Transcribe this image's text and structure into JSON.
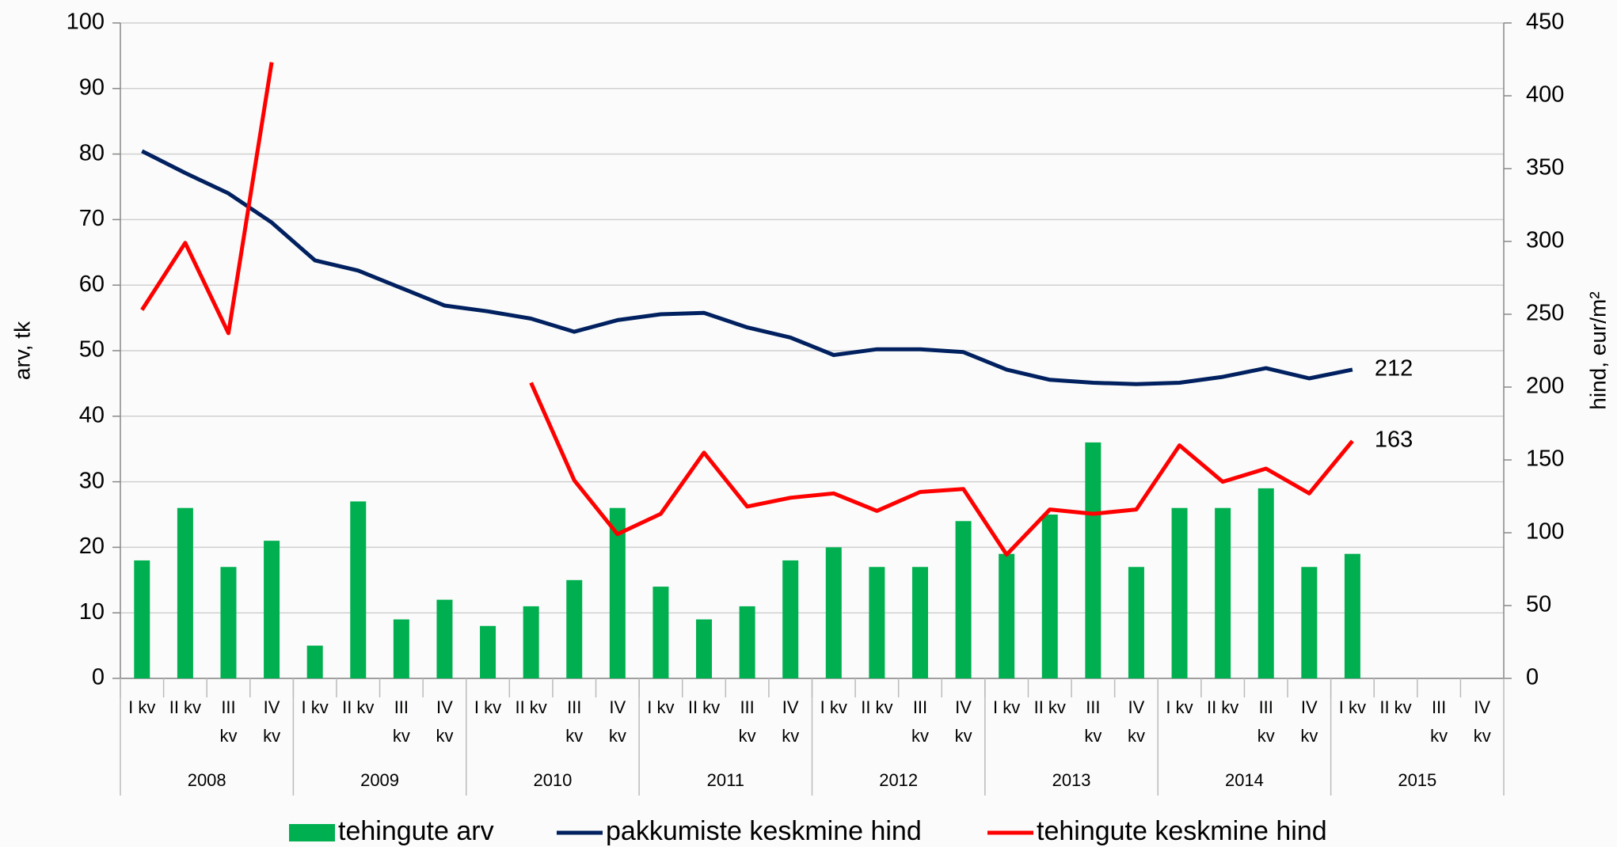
{
  "chart_data": {
    "type": "bar-line",
    "y_label": "arv, tk",
    "y2_label": "hind, eur/m²",
    "categories": [
      "I kv",
      "II kv",
      "III kv",
      "IV kv",
      "I kv",
      "II kv",
      "III kv",
      "IV kv",
      "I kv",
      "II kv",
      "III kv",
      "IV kv",
      "I kv",
      "II kv",
      "III kv",
      "IV kv",
      "I kv",
      "II kv",
      "III kv",
      "IV kv",
      "I kv",
      "II kv",
      "III kv",
      "IV kv",
      "I kv",
      "II kv",
      "III kv",
      "IV kv",
      "I kv",
      "II kv",
      "III kv",
      "IV kv"
    ],
    "groups": [
      "2008",
      "2009",
      "2010",
      "2011",
      "2012",
      "2013",
      "2014",
      "2015"
    ],
    "ylim": [
      0,
      100
    ],
    "yticks": [
      0,
      10,
      20,
      30,
      40,
      50,
      60,
      70,
      80,
      90,
      100
    ],
    "y2lim": [
      0,
      450
    ],
    "y2ticks": [
      0,
      50,
      100,
      150,
      200,
      250,
      300,
      350,
      400,
      450
    ],
    "grid": true,
    "series": [
      {
        "name": "tehingute arv",
        "type": "bar",
        "color": "#00b050",
        "values": [
          18,
          26,
          17,
          21,
          5,
          27,
          9,
          12,
          8,
          11,
          15,
          26,
          14,
          9,
          11,
          18,
          20,
          17,
          17,
          24,
          19,
          25,
          36,
          17,
          26,
          26,
          29,
          17,
          19,
          null,
          null,
          null
        ]
      },
      {
        "name": "pakkumiste keskmine hind",
        "type": "line",
        "axis": "y2",
        "color": "#002060",
        "values": [
          362,
          347,
          333,
          313,
          287,
          280,
          268,
          256,
          252,
          247,
          238,
          246,
          250,
          251,
          241,
          234,
          222,
          226,
          226,
          224,
          212,
          205,
          203,
          202,
          203,
          207,
          213,
          206,
          212,
          null,
          null,
          null
        ]
      },
      {
        "name": "tehingute keskmine hind",
        "type": "line",
        "axis": "y2",
        "color": "#ff0000",
        "values": [
          253,
          299,
          237,
          423,
          null,
          null,
          null,
          null,
          null,
          203,
          136,
          99,
          113,
          155,
          118,
          124,
          127,
          115,
          128,
          130,
          85,
          116,
          113,
          116,
          160,
          135,
          144,
          127,
          163,
          null,
          null,
          null
        ]
      }
    ],
    "end_labels": true
  }
}
